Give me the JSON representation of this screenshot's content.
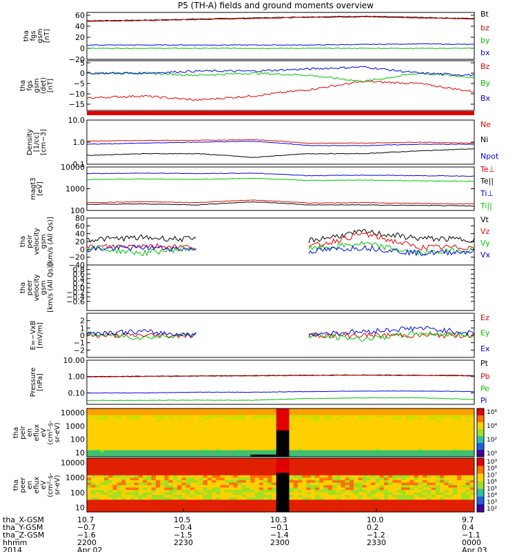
{
  "title": "P5 (TH-A) fields and ground moments overview",
  "colors": {
    "black": "#000000",
    "red": "#e00000",
    "green": "#00c000",
    "blue": "#0000e0"
  },
  "chart_data": [
    {
      "type": "line",
      "id": "p1",
      "ylabel": [
        "tha",
        "fgs",
        "gsm",
        "[nT]"
      ],
      "ylim": [
        -20,
        65
      ],
      "ticks": [
        "60",
        "40",
        "20",
        "0",
        "−20"
      ],
      "tick_vals": [
        60,
        40,
        20,
        0,
        -20
      ],
      "series": [
        {
          "name": "Bt",
          "color": "black",
          "values": [
            50,
            51,
            53,
            55,
            57,
            58,
            56,
            54
          ]
        },
        {
          "name": "bz",
          "color": "red",
          "values": [
            49,
            50,
            52,
            54,
            56,
            57,
            55,
            53
          ]
        },
        {
          "name": "by",
          "color": "green",
          "values": [
            0,
            0,
            0,
            0,
            0,
            0,
            0,
            0
          ]
        },
        {
          "name": "bx",
          "color": "blue",
          "values": [
            6,
            6,
            6,
            6,
            6,
            7,
            8,
            7
          ]
        }
      ]
    },
    {
      "type": "line",
      "id": "p2",
      "ylabel": [
        "tha",
        "fgs",
        "gsm",
        "(det)",
        "[nT]"
      ],
      "ylim": [
        -18,
        6
      ],
      "ticks": [
        "5",
        "0",
        "−5",
        "−10",
        "−15"
      ],
      "tick_vals": [
        5,
        0,
        -5,
        -10,
        -15
      ],
      "series": [
        {
          "name": "Bz",
          "color": "red",
          "values": [
            -12,
            -11,
            -13,
            -11,
            -8,
            -4,
            -5,
            -9
          ]
        },
        {
          "name": "By",
          "color": "green",
          "values": [
            0,
            0,
            -1,
            0,
            -1,
            -4,
            0,
            -2
          ]
        },
        {
          "name": "Bx",
          "color": "blue",
          "values": [
            0,
            0,
            1,
            1,
            2,
            3,
            0,
            -1
          ]
        }
      ]
    },
    {
      "type": "line",
      "id": "p3",
      "ylabel": [
        "Density",
        "[1/cc]",
        "[cm−3]"
      ],
      "log": true,
      "ylim": [
        0.1,
        10
      ],
      "ticks": [
        "10.0",
        "1.0",
        "0.1"
      ],
      "tick_vals": [
        10,
        1,
        0.1
      ],
      "series": [
        {
          "name": "Ne",
          "color": "red",
          "values": [
            1.1,
            1.2,
            1.2,
            1.3,
            0.9,
            0.9,
            1.0,
            0.9
          ]
        },
        {
          "name": "Ni",
          "color": "black",
          "values": [
            0.25,
            0.3,
            0.3,
            0.2,
            0.3,
            0.3,
            0.4,
            0.5
          ]
        },
        {
          "name": "Npot",
          "color": "blue",
          "values": [
            0.8,
            0.9,
            1.0,
            1.1,
            0.7,
            0.7,
            0.8,
            0.8
          ]
        }
      ]
    },
    {
      "type": "line",
      "id": "p4",
      "ylabel": [
        "magt3",
        "[eV]"
      ],
      "log": true,
      "ylim": [
        100,
        10000
      ],
      "ticks": [
        "10000",
        "1000",
        "100"
      ],
      "tick_vals": [
        10000,
        1000,
        100
      ],
      "series": [
        {
          "name": "Te⊥",
          "color": "red",
          "values": [
            230,
            250,
            230,
            300,
            220,
            230,
            210,
            200
          ]
        },
        {
          "name": "Te||",
          "color": "black",
          "values": [
            190,
            200,
            180,
            250,
            180,
            180,
            170,
            160
          ]
        },
        {
          "name": "Ti⊥",
          "color": "blue",
          "values": [
            5000,
            5200,
            5000,
            5200,
            4000,
            4200,
            4000,
            3800
          ]
        },
        {
          "name": "Ti||",
          "color": "green",
          "values": [
            2600,
            2800,
            2700,
            3000,
            2400,
            2500,
            2300,
            2200
          ]
        }
      ]
    },
    {
      "type": "line",
      "id": "p5",
      "ylabel": [
        "tha",
        "peir",
        "velocity",
        "gsm",
        "[km/s (All Qs)]"
      ],
      "ylim": [
        -40,
        80
      ],
      "ticks": [
        "80",
        "60",
        "40",
        "20",
        "0",
        "−20",
        "−40"
      ],
      "tick_vals": [
        80,
        60,
        40,
        20,
        0,
        -20,
        -40
      ],
      "series": [
        {
          "name": "Vt",
          "color": "black",
          "values": [
            25,
            30,
            25,
            null,
            22,
            45,
            28,
            25
          ]
        },
        {
          "name": "Vz",
          "color": "red",
          "values": [
            5,
            10,
            5,
            null,
            5,
            40,
            5,
            5
          ]
        },
        {
          "name": "Vy",
          "color": "green",
          "values": [
            5,
            -10,
            5,
            null,
            0,
            15,
            -10,
            0
          ]
        },
        {
          "name": "Vx",
          "color": "blue",
          "values": [
            0,
            5,
            0,
            null,
            -5,
            5,
            -10,
            -5
          ]
        }
      ]
    },
    {
      "type": "line",
      "id": "p6",
      "ylabel": [
        "tha",
        "peer",
        "velocity",
        "gsm",
        "[km/s (All Qs)]"
      ],
      "ylim": [
        -1,
        1
      ],
      "ticks": [
        "0.8",
        "0.6",
        "0.4",
        "0.2",
        "0.0",
        "−0.2",
        "−0.4",
        "−0.6"
      ],
      "tick_vals": [
        0.8,
        0.6,
        0.4,
        0.2,
        0,
        -0.2,
        -0.4,
        -0.6
      ],
      "series": [
        {
          "name": "Vt",
          "color": "black",
          "values": []
        },
        {
          "name": "Vz",
          "color": "red",
          "values": []
        },
        {
          "name": "Vy",
          "color": "green",
          "values": []
        },
        {
          "name": "Vx",
          "color": "blue",
          "values": []
        }
      ]
    },
    {
      "type": "line",
      "id": "p7",
      "ylabel": [
        "E=−VxB",
        "[mV/m]"
      ],
      "ylim": [
        -3,
        3
      ],
      "ticks": [
        "2",
        "1",
        "0",
        "−1",
        "−2"
      ],
      "tick_vals": [
        2,
        1,
        0,
        -1,
        -2
      ],
      "series": [
        {
          "name": "Ez",
          "color": "red",
          "values": [
            0,
            0,
            0,
            null,
            0,
            0,
            0,
            0
          ]
        },
        {
          "name": "Ey",
          "color": "green",
          "values": [
            0.2,
            -0.3,
            0.2,
            null,
            0,
            -0.5,
            0.3,
            0
          ]
        },
        {
          "name": "Ex",
          "color": "blue",
          "values": [
            0.3,
            0.5,
            0,
            null,
            0.2,
            0.5,
            1,
            0.3
          ]
        }
      ]
    },
    {
      "type": "line",
      "id": "p8",
      "ylabel": [
        "Pressure",
        "[nPa]"
      ],
      "log": true,
      "ylim": [
        0.02,
        10
      ],
      "ticks": [
        "10.00",
        "1.00",
        "0.10"
      ],
      "tick_vals": [
        10,
        1,
        0.1
      ],
      "series": [
        {
          "name": "Pt",
          "color": "black",
          "values": [
            1.0,
            1.05,
            1.1,
            1.15,
            1.2,
            1.25,
            1.2,
            1.15
          ]
        },
        {
          "name": "Pb",
          "color": "red",
          "values": [
            0.95,
            1.0,
            1.05,
            1.1,
            1.15,
            1.2,
            1.15,
            1.1
          ]
        },
        {
          "name": "Pe",
          "color": "green",
          "values": [
            0.035,
            0.035,
            0.036,
            0.036,
            0.045,
            0.05,
            0.05,
            0.04
          ]
        },
        {
          "name": "Pi",
          "color": "blue",
          "values": [
            0.1,
            0.1,
            0.11,
            0.11,
            0.12,
            0.13,
            0.13,
            0.12
          ]
        }
      ]
    },
    {
      "type": "heatmap",
      "id": "s1",
      "ylabel": [
        "tha",
        "peir",
        "en",
        "eflux",
        "eV",
        "(cm²-s-",
        "sr-eV)"
      ],
      "log": true,
      "ylim": [
        5,
        20000
      ],
      "ticks": [
        "10000",
        "1000",
        "100",
        "10"
      ],
      "tick_vals": [
        10000,
        1000,
        100,
        10
      ],
      "colorbar": {
        "ticks": [
          "10⁶",
          "10⁴",
          "10²",
          "10⁰"
        ]
      }
    },
    {
      "type": "heatmap",
      "id": "s2",
      "ylabel": [
        "tha",
        "peer",
        "en",
        "eflux",
        "eV",
        "(cm²-s-",
        "sr-eV)"
      ],
      "log": true,
      "ylim": [
        5,
        20000
      ],
      "ticks": [
        "10000",
        "1000",
        "100",
        "10"
      ],
      "tick_vals": [
        10000,
        1000,
        100,
        10
      ],
      "colorbar": {
        "ticks": [
          "10⁹",
          "10⁸",
          "10⁷",
          "10⁶",
          "10⁵",
          "10⁴",
          "10³",
          "10²"
        ]
      }
    }
  ],
  "xaxis": {
    "rows": [
      {
        "label": "tha_X-GSM",
        "values": [
          "10.7",
          "10.5",
          "10.3",
          "10.0",
          "9.7"
        ]
      },
      {
        "label": "tha_Y-GSM",
        "values": [
          "−0.7",
          "−0.4",
          "−0.1",
          "0.2",
          "0.4"
        ]
      },
      {
        "label": "tha_Z-GSM",
        "values": [
          "−1.6",
          "−1.5",
          "−1.4",
          "−1.2",
          "−1.1"
        ]
      },
      {
        "label": "hhmm",
        "values": [
          "2200",
          "2230",
          "2300",
          "2330",
          "0000"
        ]
      },
      {
        "label": "2014",
        "values": [
          "Apr 02",
          "",
          "",
          "",
          "Apr 03"
        ]
      }
    ]
  }
}
